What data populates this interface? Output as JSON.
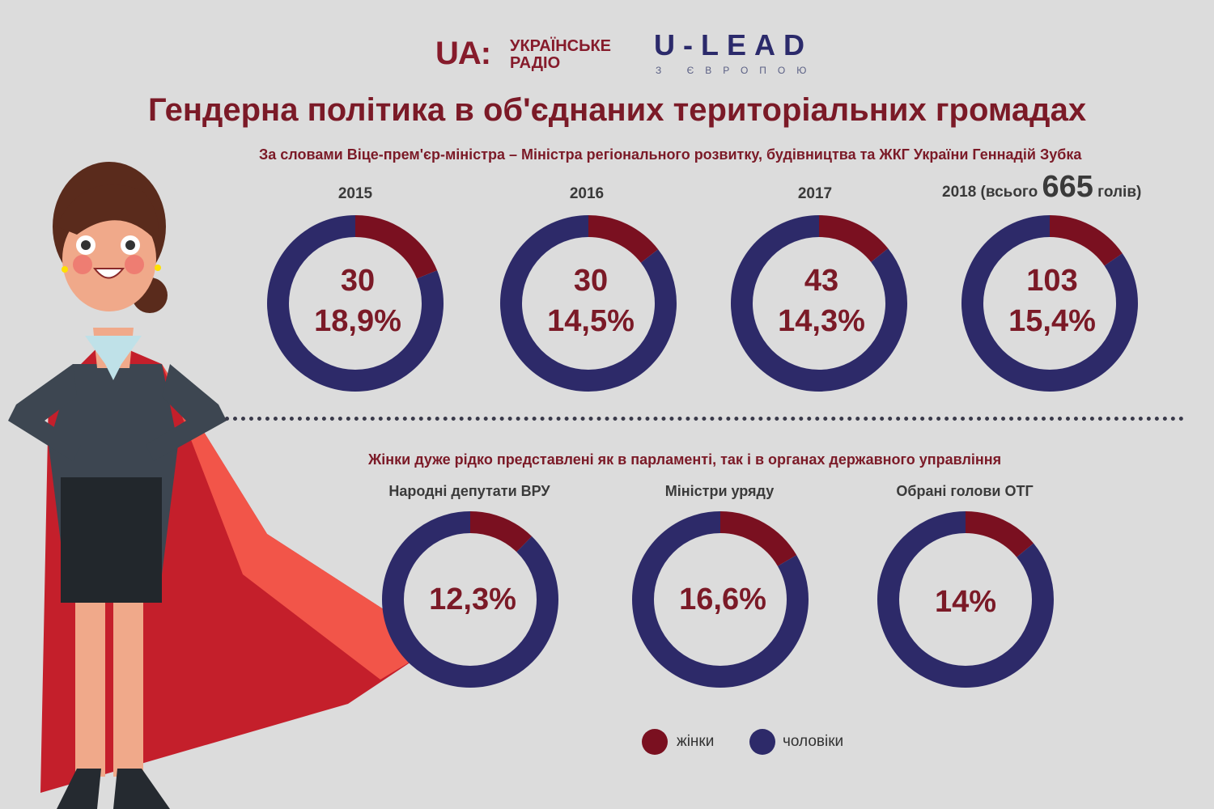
{
  "header": {
    "ua_logo": "UA:",
    "ua_name_line1": "УКРАЇНСЬКЕ",
    "ua_name_line2": "РАДІО",
    "ulead_logo": "U-LEAD",
    "ulead_sub": "З ЄВРОПОЮ"
  },
  "title": "Гендерна політика в об'єднаних територіальних громадах",
  "subtitle": "За словами  Віце-прем'єр-міністра – Міністра регіонального розвитку, будівництва та ЖКГ України Геннадій Зубка",
  "section2_title": "Жінки дуже рідко представлені як в парламенті, так і в органах державного управління",
  "year2018_prefix": "2018 (всього",
  "year2018_total": "665",
  "year2018_suffix": "голів)",
  "colors": {
    "women": "#7a1020",
    "men": "#2d2a69",
    "title": "#7b1a27"
  },
  "chart_data": [
    {
      "type": "pie",
      "title": "2015",
      "count": "30",
      "label": "18,9%",
      "series": [
        {
          "name": "жінки",
          "value": 18.9
        },
        {
          "name": "чоловіки",
          "value": 81.1
        }
      ]
    },
    {
      "type": "pie",
      "title": "2016",
      "count": "30",
      "label": "14,5%",
      "series": [
        {
          "name": "жінки",
          "value": 14.5
        },
        {
          "name": "чоловіки",
          "value": 85.5
        }
      ]
    },
    {
      "type": "pie",
      "title": "2017",
      "count": "43",
      "label": "14,3%",
      "series": [
        {
          "name": "жінки",
          "value": 14.3
        },
        {
          "name": "чоловіки",
          "value": 85.7
        }
      ]
    },
    {
      "type": "pie",
      "title": "2018",
      "count": "103",
      "label": "15,4%",
      "series": [
        {
          "name": "жінки",
          "value": 15.4
        },
        {
          "name": "чоловіки",
          "value": 84.6
        }
      ]
    },
    {
      "type": "pie",
      "title": "Народні депутати ВРУ",
      "label": "12,3%",
      "series": [
        {
          "name": "жінки",
          "value": 12.3
        },
        {
          "name": "чоловіки",
          "value": 87.7
        }
      ]
    },
    {
      "type": "pie",
      "title": "Міністри уряду",
      "label": "16,6%",
      "series": [
        {
          "name": "жінки",
          "value": 16.6
        },
        {
          "name": "чоловіки",
          "value": 83.4
        }
      ]
    },
    {
      "type": "pie",
      "title": "Обрані голови ОТГ",
      "label": "14%",
      "series": [
        {
          "name": "жінки",
          "value": 14
        },
        {
          "name": "чоловіки",
          "value": 86
        }
      ]
    }
  ],
  "legend": [
    {
      "label": "жінки",
      "color": "#7a1020"
    },
    {
      "label": "чоловіки",
      "color": "#2d2a69"
    }
  ]
}
